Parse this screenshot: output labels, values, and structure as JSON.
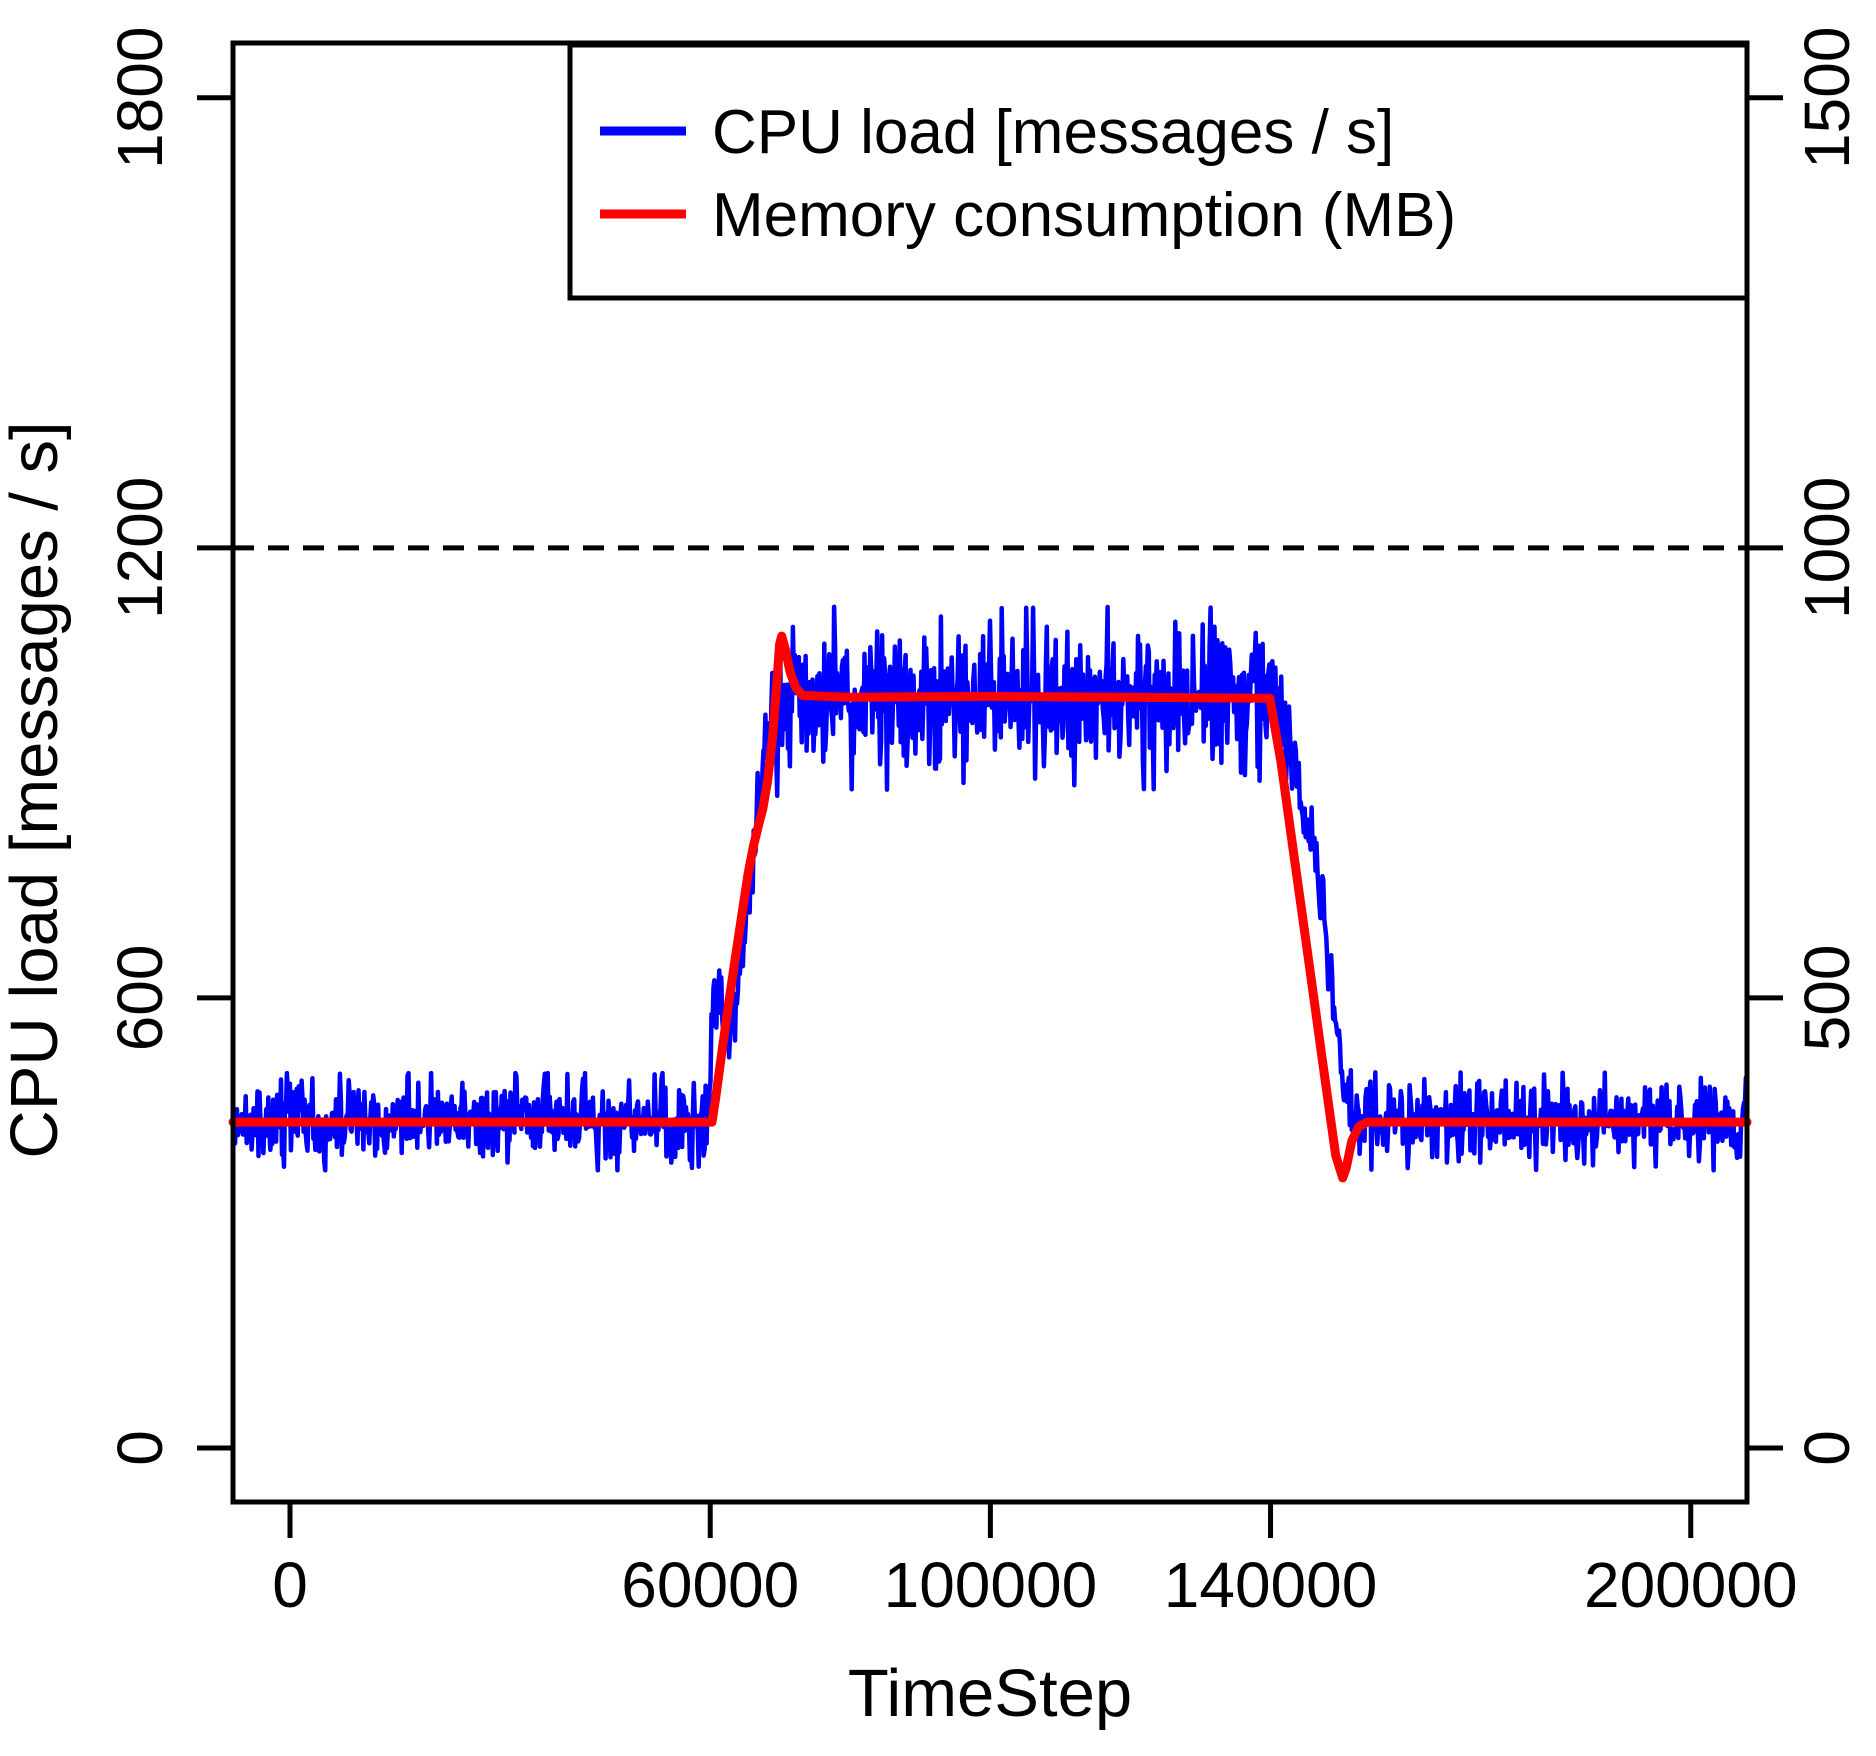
{
  "chart_data": {
    "type": "line",
    "title": "",
    "xlabel": "TimeStep",
    "ylabel_left": "CPU load [messages / s]",
    "ylabel_right": "",
    "axes": {
      "xlim": [
        -8140,
        208030
      ],
      "ylim_left": [
        -72,
        1873
      ],
      "x_ticks": [
        0,
        60000,
        100000,
        140000,
        200000
      ],
      "left_ticks": [
        0,
        600,
        1200,
        1800
      ],
      "right_ticks": [
        0,
        500,
        1000,
        1500
      ],
      "left_units_per_right_unit": 1.2,
      "grid": false
    },
    "threshold_line": {
      "left_value": 1200,
      "right_value": 1000,
      "style": "dashed",
      "color": "#000000"
    },
    "legend": {
      "position": "top",
      "entries": [
        {
          "label": "CPU load [messages / s]",
          "color": "#0000FF"
        },
        {
          "label": "Memory consumption (MB)",
          "color": "#FF0000"
        }
      ]
    },
    "series": [
      {
        "name": "CPU load [messages / s]",
        "axis": "left",
        "color": "#0000FF",
        "style": "noisy-line",
        "summary": {
          "baseline_mean": 435,
          "plateau_mean": 1000,
          "step_up_at": 60000,
          "step_down_start": 140000,
          "back_to_baseline_at": 151500,
          "noise_band_baseline": 60,
          "noise_band_plateau": 120
        },
        "mean_breakpoints": [
          [
            -8140,
            435
          ],
          [
            59950,
            435
          ],
          [
            60150,
            545
          ],
          [
            60400,
            600
          ],
          [
            61100,
            605
          ],
          [
            61600,
            565
          ],
          [
            62400,
            545
          ],
          [
            63100,
            560
          ],
          [
            63900,
            615
          ],
          [
            64700,
            675
          ],
          [
            65500,
            740
          ],
          [
            66300,
            805
          ],
          [
            67100,
            875
          ],
          [
            67700,
            925
          ],
          [
            68200,
            900
          ],
          [
            68700,
            955
          ],
          [
            69100,
            975
          ],
          [
            69500,
            905
          ],
          [
            69900,
            1005
          ],
          [
            70400,
            1000
          ],
          [
            75000,
            1000
          ],
          [
            100000,
            998
          ],
          [
            120000,
            1000
          ],
          [
            140700,
            998
          ],
          [
            142000,
            952
          ],
          [
            143500,
            898
          ],
          [
            145000,
            838
          ],
          [
            146500,
            762
          ],
          [
            147800,
            682
          ],
          [
            149000,
            590
          ],
          [
            150000,
            500
          ],
          [
            150800,
            452
          ],
          [
            151600,
            436
          ],
          [
            208030,
            435
          ]
        ],
        "noise": {
          "regions": [
            {
              "from": -8140,
              "to": 59900,
              "sigma": 24
            },
            {
              "from": 59900,
              "to": 70500,
              "sigma": 26
            },
            {
              "from": 70500,
              "to": 140800,
              "sigma": 45
            },
            {
              "from": 140800,
              "to": 151200,
              "sigma": 22
            },
            {
              "from": 151200,
              "to": 208030,
              "sigma": 24
            }
          ],
          "spike_prob": 0.1,
          "spike_scale": 1.9,
          "clamp_z": 2.7,
          "seed": 20240513,
          "sample_step": 140
        }
      },
      {
        "name": "Memory consumption (MB)",
        "axis": "right",
        "color": "#FF0000",
        "style": "smooth-line",
        "summary": {
          "baseline_mb": 362,
          "plateau_mb": 834,
          "overshoot_peak_mb": 902,
          "overshoot_peak_at": 70000,
          "undershoot_min_mb": 300,
          "undershoot_min_at": 150300
        },
        "breakpoints": [
          [
            -8140,
            362
          ],
          [
            60250,
            362
          ],
          [
            60800,
            390
          ],
          [
            61600,
            436
          ],
          [
            62600,
            492
          ],
          [
            63600,
            545
          ],
          [
            64600,
            597
          ],
          [
            65400,
            638
          ],
          [
            66200,
            670
          ],
          [
            66900,
            692
          ],
          [
            67500,
            710
          ],
          [
            68200,
            742
          ],
          [
            68900,
            790
          ],
          [
            69500,
            850
          ],
          [
            69900,
            893
          ],
          [
            70200,
            902
          ],
          [
            70700,
            888
          ],
          [
            71400,
            862
          ],
          [
            72200,
            845
          ],
          [
            73200,
            836
          ],
          [
            80000,
            834
          ],
          [
            100000,
            835
          ],
          [
            120000,
            834
          ],
          [
            139900,
            833
          ],
          [
            141500,
            762
          ],
          [
            143500,
            650
          ],
          [
            145500,
            538
          ],
          [
            147500,
            425
          ],
          [
            149300,
            325
          ],
          [
            150300,
            300
          ],
          [
            150800,
            311
          ],
          [
            151600,
            341
          ],
          [
            152600,
            357
          ],
          [
            153800,
            362
          ],
          [
            208030,
            362
          ]
        ]
      }
    ]
  }
}
